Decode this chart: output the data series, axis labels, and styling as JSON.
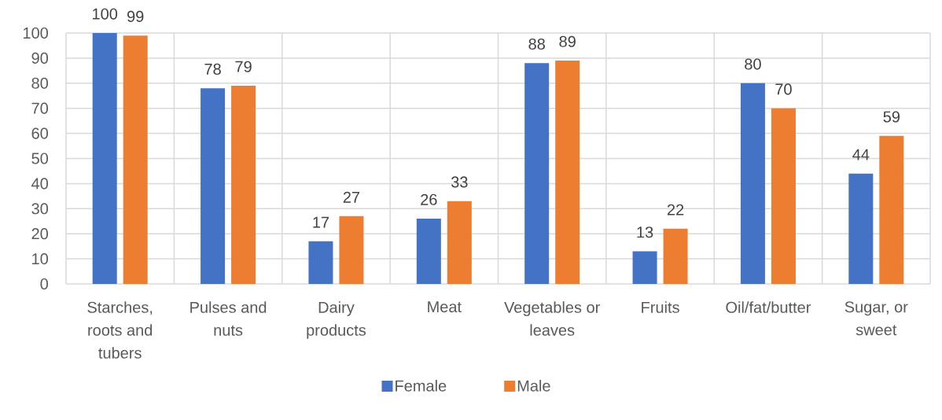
{
  "chart_data": {
    "type": "bar",
    "categories": [
      "Starches, roots and tubers",
      "Pulses and nuts",
      "Dairy products",
      "Meat",
      "Vegetables or leaves",
      "Fruits",
      "Oil/fat/butter",
      "Sugar, or sweet"
    ],
    "series": [
      {
        "name": "Female",
        "color": "#4472c4",
        "values": [
          100,
          78,
          17,
          26,
          88,
          13,
          80,
          44
        ]
      },
      {
        "name": "Male",
        "color": "#ed7d31",
        "values": [
          99,
          79,
          27,
          33,
          89,
          22,
          70,
          59
        ]
      }
    ],
    "ylim": [
      0,
      100
    ],
    "yticks": [
      0,
      10,
      20,
      30,
      40,
      50,
      60,
      70,
      80,
      90,
      100
    ],
    "grid": true,
    "legend": "bottom",
    "data_labels": true
  }
}
